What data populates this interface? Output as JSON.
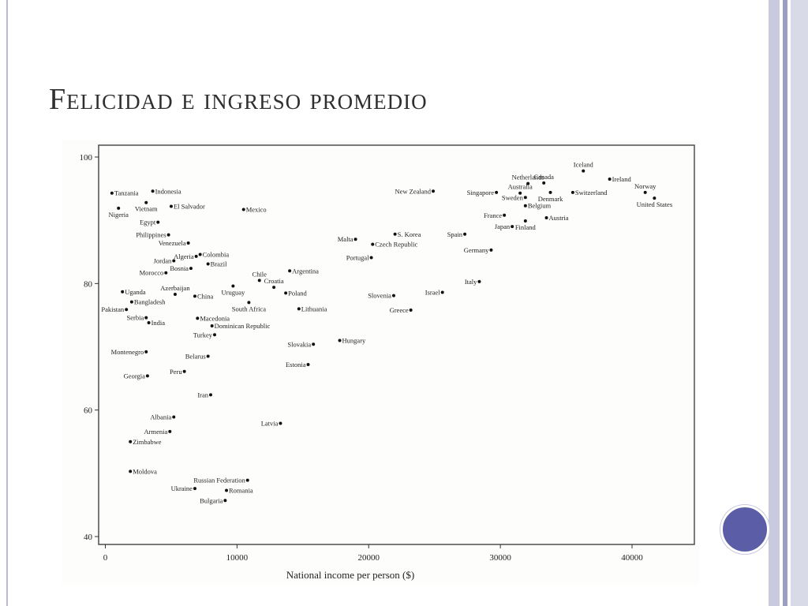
{
  "slide": {
    "title": "Felicidad e ingreso promedio",
    "accent_color": "#5b5ea6",
    "stripe_colors": [
      "#c9cadd",
      "#9c9ebf",
      "#d9dae8"
    ]
  },
  "chart_data": {
    "type": "scatter",
    "title": "",
    "xlabel": "National income per person ($)",
    "ylabel": "",
    "xlim": [
      0,
      45000
    ],
    "ylim": [
      40,
      100
    ],
    "xticks": [
      0,
      10000,
      20000,
      30000,
      40000
    ],
    "xtick_labels": [
      "0",
      "10000",
      "20000",
      "30000",
      "40000"
    ],
    "yticks": [
      40,
      60,
      80,
      100
    ],
    "ytick_labels": [
      "40",
      "60",
      "80",
      "100"
    ],
    "grid": false,
    "points": [
      {
        "label": "Tanzania",
        "x": 500,
        "y": 94.3,
        "side": "right"
      },
      {
        "label": "Indonesia",
        "x": 3600,
        "y": 94.6,
        "side": "right"
      },
      {
        "label": "Vietnam",
        "x": 3100,
        "y": 92.8,
        "side": "below"
      },
      {
        "label": "El Salvador",
        "x": 5000,
        "y": 92.2,
        "side": "right"
      },
      {
        "label": "Nigeria",
        "x": 1000,
        "y": 91.9,
        "side": "below"
      },
      {
        "label": "Mexico",
        "x": 10500,
        "y": 91.7,
        "side": "right"
      },
      {
        "label": "Egypt",
        "x": 4000,
        "y": 89.7,
        "side": "left"
      },
      {
        "label": "Philippines",
        "x": 4800,
        "y": 87.7,
        "side": "left"
      },
      {
        "label": "Venezuela",
        "x": 6300,
        "y": 86.4,
        "side": "left"
      },
      {
        "label": "Algeria",
        "x": 6900,
        "y": 84.3,
        "side": "left"
      },
      {
        "label": "Colombia",
        "x": 7200,
        "y": 84.6,
        "side": "right"
      },
      {
        "label": "Jordan",
        "x": 5200,
        "y": 83.6,
        "side": "left"
      },
      {
        "label": "Brazil",
        "x": 7800,
        "y": 83.1,
        "side": "right"
      },
      {
        "label": "Bosnia",
        "x": 6500,
        "y": 82.4,
        "side": "left"
      },
      {
        "label": "Morocco",
        "x": 4600,
        "y": 81.7,
        "side": "left"
      },
      {
        "label": "Chile",
        "x": 11700,
        "y": 80.5,
        "side": "above"
      },
      {
        "label": "Argentina",
        "x": 14000,
        "y": 82.0,
        "side": "right"
      },
      {
        "label": "Croatia",
        "x": 12800,
        "y": 79.4,
        "side": "above"
      },
      {
        "label": "Uruguay",
        "x": 9700,
        "y": 79.6,
        "side": "below"
      },
      {
        "label": "Azerbaijan",
        "x": 5300,
        "y": 78.3,
        "side": "above"
      },
      {
        "label": "Uganda",
        "x": 1300,
        "y": 78.7,
        "side": "right"
      },
      {
        "label": "China",
        "x": 6800,
        "y": 78.0,
        "side": "right"
      },
      {
        "label": "Poland",
        "x": 13700,
        "y": 78.5,
        "side": "right"
      },
      {
        "label": "Bangladesh",
        "x": 2000,
        "y": 77.1,
        "side": "right"
      },
      {
        "label": "South Africa",
        "x": 10900,
        "y": 77.0,
        "side": "below"
      },
      {
        "label": "Lithuania",
        "x": 14700,
        "y": 76.0,
        "side": "right"
      },
      {
        "label": "Pakistan",
        "x": 1600,
        "y": 75.9,
        "side": "left"
      },
      {
        "label": "Serbia",
        "x": 3100,
        "y": 74.6,
        "side": "left"
      },
      {
        "label": "India",
        "x": 3300,
        "y": 73.8,
        "side": "right"
      },
      {
        "label": "Macedonia",
        "x": 7000,
        "y": 74.5,
        "side": "right"
      },
      {
        "label": "Dominican Republic",
        "x": 8100,
        "y": 73.3,
        "side": "right"
      },
      {
        "label": "Turkey",
        "x": 8300,
        "y": 71.9,
        "side": "left"
      },
      {
        "label": "Hungary",
        "x": 17800,
        "y": 71.0,
        "side": "right"
      },
      {
        "label": "Slovakia",
        "x": 15800,
        "y": 70.4,
        "side": "left"
      },
      {
        "label": "Montenegro",
        "x": 3100,
        "y": 69.2,
        "side": "left"
      },
      {
        "label": "Belarus",
        "x": 7800,
        "y": 68.5,
        "side": "left"
      },
      {
        "label": "Estonia",
        "x": 15400,
        "y": 67.2,
        "side": "left"
      },
      {
        "label": "Peru",
        "x": 6000,
        "y": 66.1,
        "side": "left"
      },
      {
        "label": "Georgia",
        "x": 3200,
        "y": 65.4,
        "side": "left"
      },
      {
        "label": "Iran",
        "x": 8000,
        "y": 62.4,
        "side": "left"
      },
      {
        "label": "Albania",
        "x": 5200,
        "y": 58.9,
        "side": "left"
      },
      {
        "label": "Latvia",
        "x": 13300,
        "y": 57.9,
        "side": "left"
      },
      {
        "label": "Armenia",
        "x": 4900,
        "y": 56.6,
        "side": "left"
      },
      {
        "label": "Zimbabwe",
        "x": 1900,
        "y": 55.0,
        "side": "right"
      },
      {
        "label": "Moldova",
        "x": 1900,
        "y": 50.3,
        "side": "right"
      },
      {
        "label": "Russian Federation",
        "x": 10800,
        "y": 48.9,
        "side": "left"
      },
      {
        "label": "Ukraine",
        "x": 6800,
        "y": 47.6,
        "side": "left"
      },
      {
        "label": "Romania",
        "x": 9200,
        "y": 47.3,
        "side": "right"
      },
      {
        "label": "Bulgaria",
        "x": 9100,
        "y": 45.7,
        "side": "left"
      },
      {
        "label": "New Zealand",
        "x": 24900,
        "y": 94.6,
        "side": "left"
      },
      {
        "label": "Singapore",
        "x": 29700,
        "y": 94.4,
        "side": "left"
      },
      {
        "label": "Netherlands",
        "x": 32100,
        "y": 95.8,
        "side": "above"
      },
      {
        "label": "Canada",
        "x": 33300,
        "y": 95.9,
        "side": "above"
      },
      {
        "label": "Australia",
        "x": 31500,
        "y": 94.3,
        "side": "above"
      },
      {
        "label": "Iceland",
        "x": 36300,
        "y": 97.8,
        "side": "above"
      },
      {
        "label": "Ireland",
        "x": 38300,
        "y": 96.5,
        "side": "right"
      },
      {
        "label": "Switzerland",
        "x": 35500,
        "y": 94.4,
        "side": "right"
      },
      {
        "label": "Denmark",
        "x": 33800,
        "y": 94.4,
        "side": "below"
      },
      {
        "label": "Sweden",
        "x": 31900,
        "y": 93.6,
        "side": "left"
      },
      {
        "label": "Norway",
        "x": 41000,
        "y": 94.4,
        "side": "above"
      },
      {
        "label": "United States",
        "x": 41700,
        "y": 93.5,
        "side": "below"
      },
      {
        "label": "Belgium",
        "x": 31900,
        "y": 92.3,
        "side": "right"
      },
      {
        "label": "France",
        "x": 30300,
        "y": 90.8,
        "side": "left"
      },
      {
        "label": "Austria",
        "x": 33500,
        "y": 90.4,
        "side": "right"
      },
      {
        "label": "Finland",
        "x": 31900,
        "y": 89.9,
        "side": "below"
      },
      {
        "label": "Japan",
        "x": 30900,
        "y": 89.0,
        "side": "left"
      },
      {
        "label": "S. Korea",
        "x": 22000,
        "y": 87.8,
        "side": "right"
      },
      {
        "label": "Spain",
        "x": 27300,
        "y": 87.8,
        "side": "left"
      },
      {
        "label": "Malta",
        "x": 19000,
        "y": 87.0,
        "side": "left"
      },
      {
        "label": "Czech Republic",
        "x": 20300,
        "y": 86.2,
        "side": "right"
      },
      {
        "label": "Germany",
        "x": 29300,
        "y": 85.3,
        "side": "left"
      },
      {
        "label": "Portugal",
        "x": 20200,
        "y": 84.1,
        "side": "left"
      },
      {
        "label": "Italy",
        "x": 28400,
        "y": 80.3,
        "side": "left"
      },
      {
        "label": "Israel",
        "x": 25600,
        "y": 78.6,
        "side": "left"
      },
      {
        "label": "Slovenia",
        "x": 21900,
        "y": 78.1,
        "side": "left"
      },
      {
        "label": "Greece",
        "x": 23200,
        "y": 75.8,
        "side": "left"
      }
    ]
  }
}
